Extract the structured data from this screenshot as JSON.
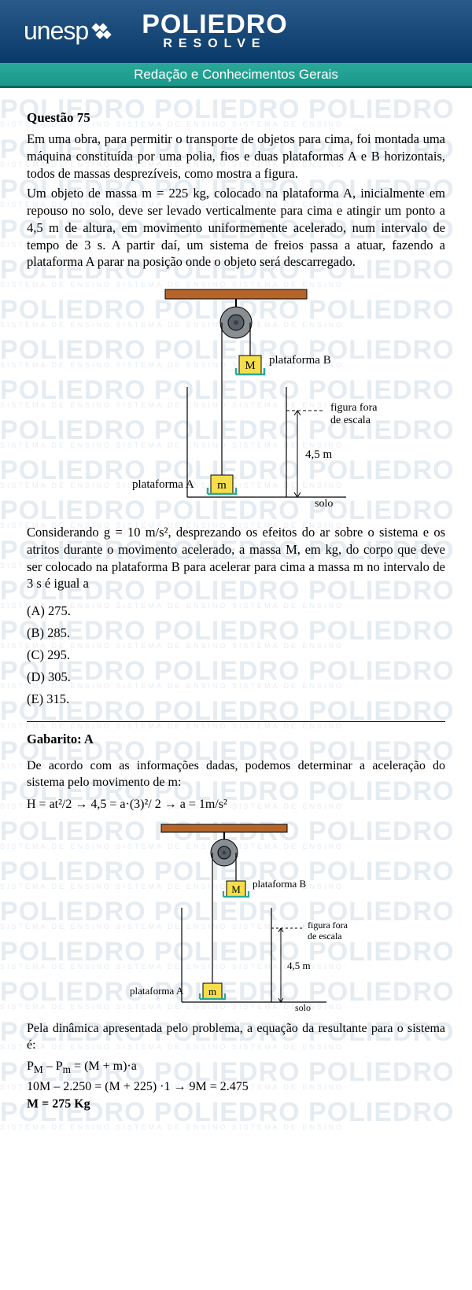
{
  "header": {
    "logo1": "unesp",
    "logo2_main": "POLIEDRO",
    "logo2_sub": "RESOLVE",
    "bar": "Redação e Conhecimentos Gerais"
  },
  "watermark": {
    "main": "POLIEDRO POLIEDRO POLIEDRO",
    "sub": "SISTEMA DE ENSINO  SISTEMA DE ENSINO  SISTEMA DE ENSINO"
  },
  "question": {
    "title": "Questão 75",
    "p1": "Em uma obra, para permitir o transporte de objetos para cima, foi montada uma máquina constituída por uma polia, fios e duas plataformas A e B horizontais, todos de massas desprezíveis, como mostra a figura.",
    "p2": "Um objeto de massa m = 225 kg, colocado na plataforma A, inicialmente em repouso no solo, deve ser levado verticalmente para cima e atingir um ponto a 4,5 m de altura, em movimento uniformemente acelerado, num intervalo de tempo de 3 s. A partir daí, um sistema de freios passa a atuar, fazendo a plataforma A parar na posição onde o objeto será descarregado.",
    "p3": "Considerando g = 10 m/s², desprezando os efeitos do ar sobre o sistema e os atritos durante o movimento acelerado, a massa M, em kg, do corpo que deve ser colocado na plataforma B para acelerar para cima a massa m no intervalo de 3 s é igual a"
  },
  "figure": {
    "labelA": "plataforma A",
    "labelB": "plataforma B",
    "boxA": "m",
    "boxB": "M",
    "height": "4,5 m",
    "note": "figura fora\nde escala",
    "solo": "solo",
    "colors": {
      "beam": "#b5652a",
      "pulley_outer": "#8a8f94",
      "pulley_inner": "#5a6168",
      "box_fill": "#f5de4a",
      "box_stroke": "#2aa89a",
      "line": "#000000"
    }
  },
  "options": {
    "A": "(A)  275.",
    "B": "(B)  285.",
    "C": "(C)  295.",
    "D": "(D)  305.",
    "E": "(E)  315."
  },
  "solution": {
    "gabarito": "Gabarito: A",
    "p1": "De acordo com as informações dadas, podemos determinar a aceleração do sistema pelo movimento de m:",
    "eq1": "H = at²/2 → 4,5 = a·(3)²/ 2 → a = 1m/s²",
    "p2": "Pela dinâmica apresentada pelo problema, a equação da resultante para o sistema é:",
    "eq2": "Pₘ – Pₘ = (M + m)·a",
    "eq2b": "P",
    "eq2_M": "M",
    "eq2_m": "m",
    "eq2_rest": " – P",
    "eq2_rest2": " = (M + m)·a",
    "eq3": "10M – 2.250 = (M + 225) ·1 → 9M = 2.475",
    "eq4": "M = 275 Kg"
  }
}
